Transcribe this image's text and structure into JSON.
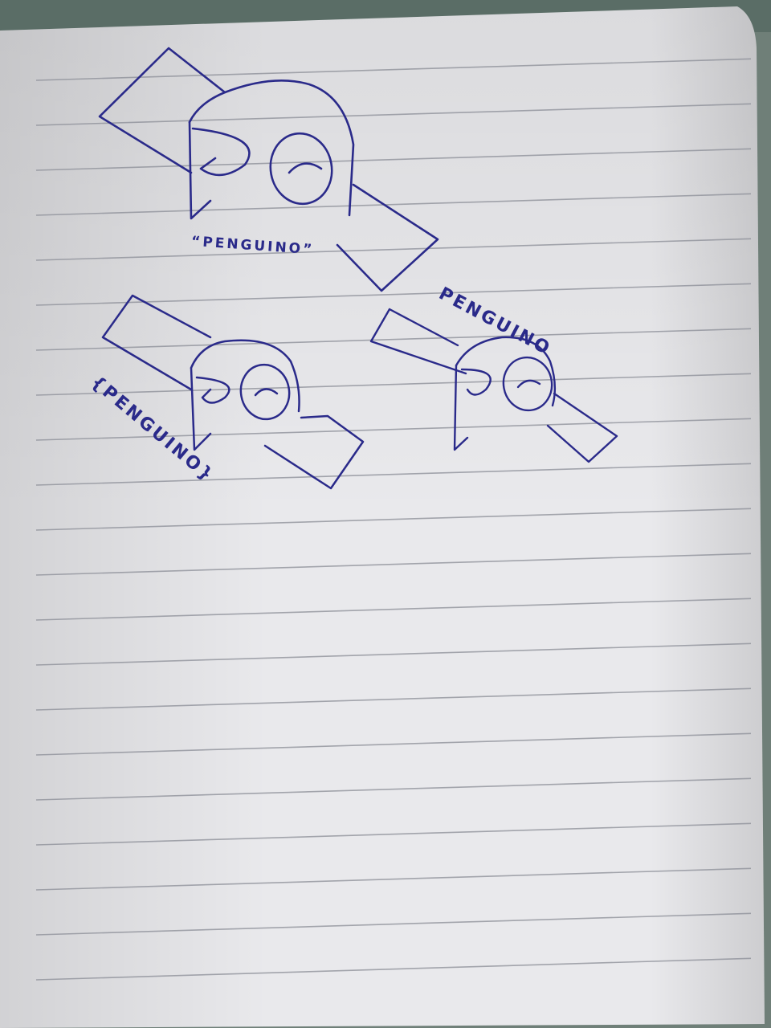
{
  "notebook": {
    "paper_color": "#e9e9ec",
    "line_color": "#8a8c96",
    "ink_color": "#2a2a8a",
    "background_color": "#6f7f78"
  },
  "sketches": [
    {
      "label": "“PENGUINO”"
    },
    {
      "label": "PENGUINO"
    },
    {
      "label": "{PENGUINO}"
    }
  ]
}
